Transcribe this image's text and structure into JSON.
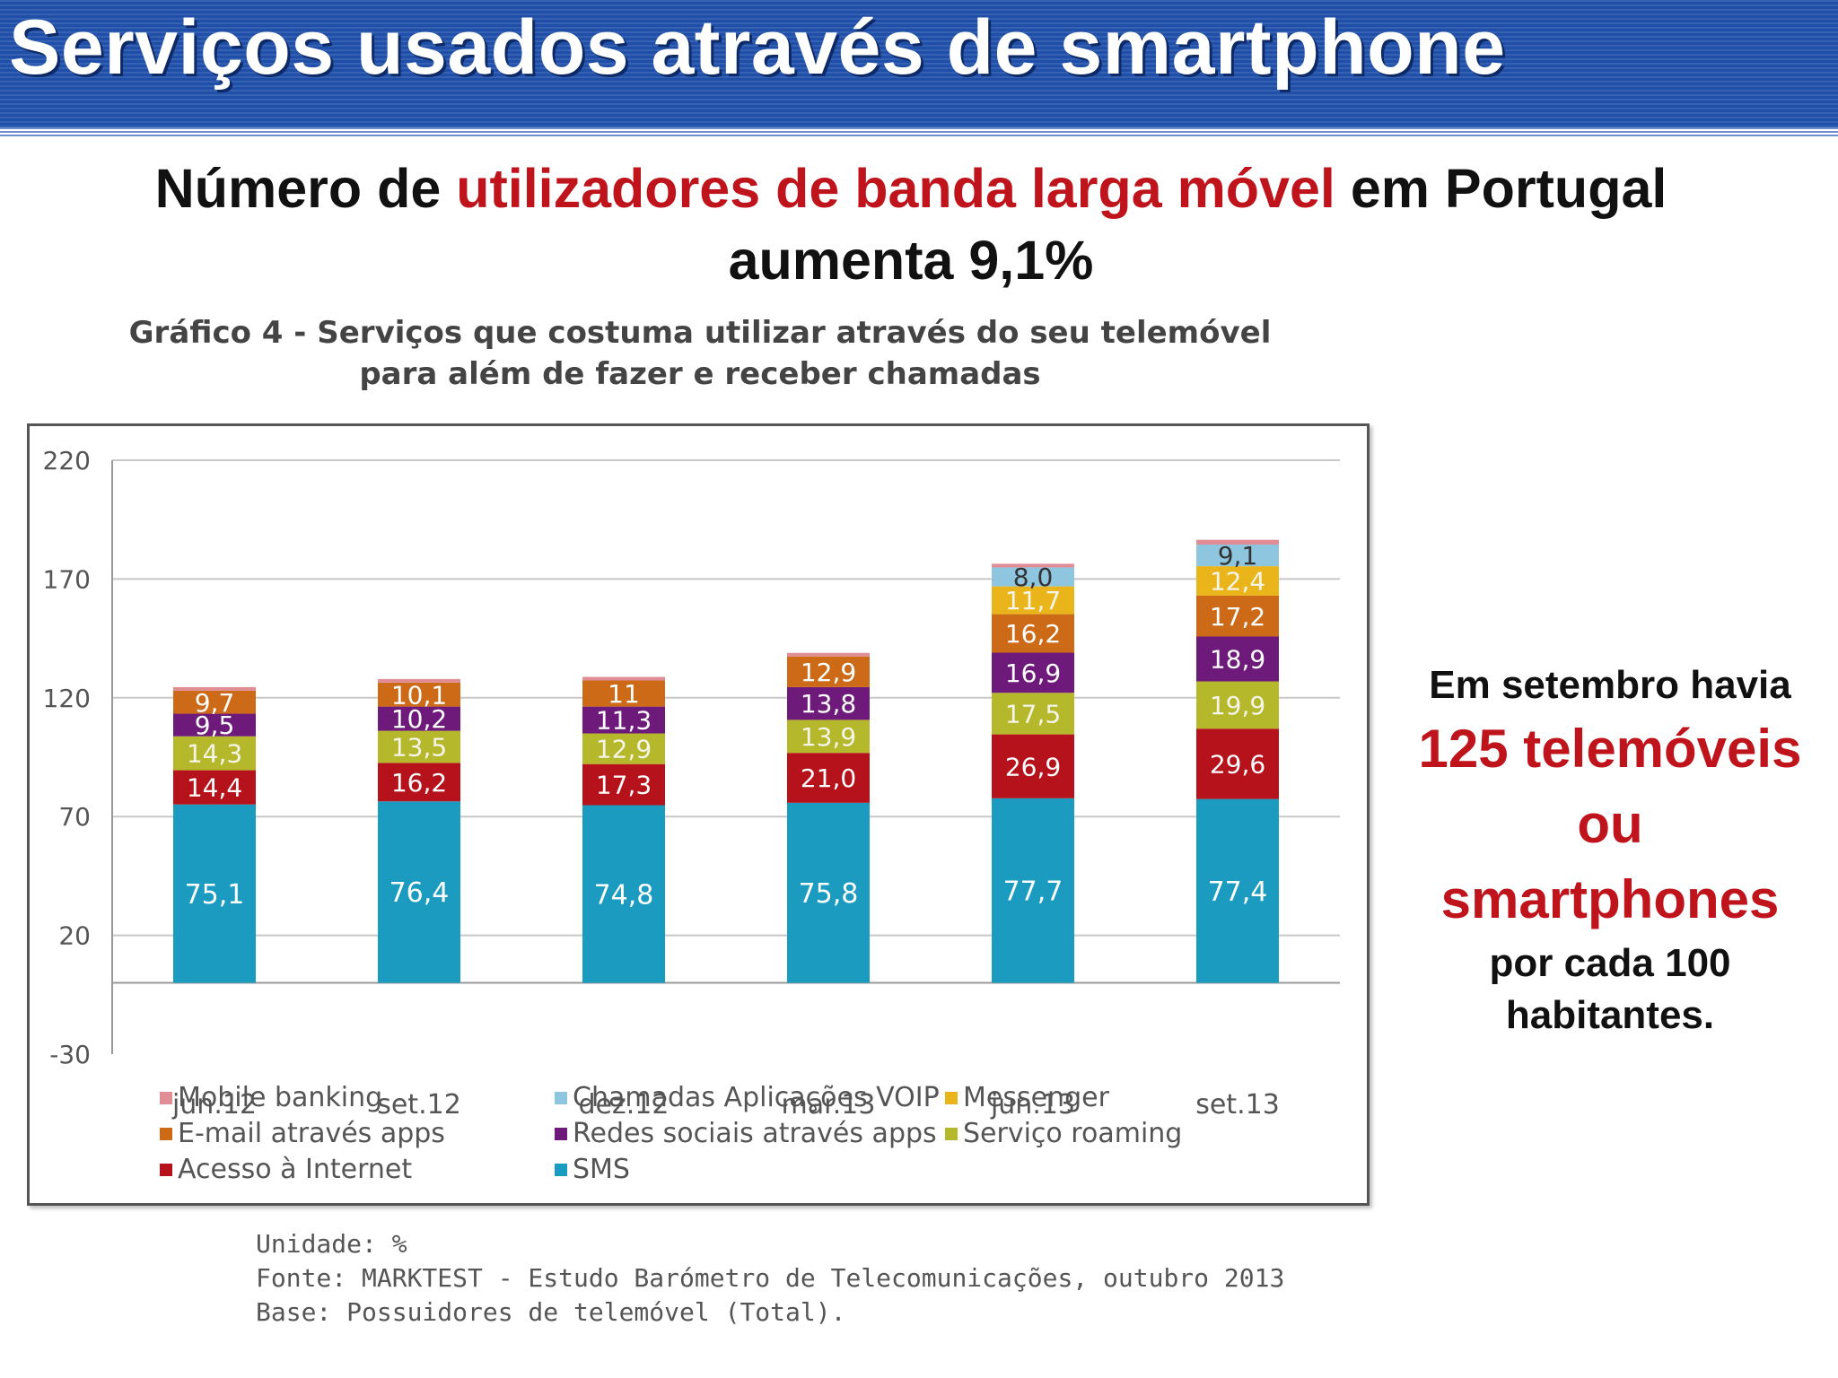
{
  "page": {
    "title": "Serviços usados através de smartphone",
    "headline_parts": [
      "Número de ",
      "utilizadores de banda larga móvel",
      " em Portugal aumenta 9,1%"
    ],
    "colors": {
      "banner": "#1f4fa8",
      "highlight": "#c0141c"
    }
  },
  "side_note": {
    "line1": "Em setembro havia",
    "line2": "125 telemóveis",
    "line3": "ou",
    "line4": "smartphones",
    "line5": "por cada 100",
    "line6": "habitantes."
  },
  "source": {
    "unit": "Unidade: %",
    "source": "Fonte: MARKTEST - Estudo Barómetro de Telecomunicações, outubro 2013",
    "base": "Base: Possuidores de telemóvel (Total)."
  },
  "chart_data": {
    "type": "bar",
    "stacked": true,
    "title_line1": "Gráfico 4 - Serviços que costuma utilizar através do seu telemóvel",
    "title_line2": "para além de fazer e receber chamadas",
    "categories": [
      "jun.12",
      "set.12",
      "dez.12",
      "mar.13",
      "jun.13",
      "set.13"
    ],
    "ylim": [
      -30,
      220
    ],
    "yticks": [
      "220",
      "170",
      "120",
      "70",
      "20",
      "-30"
    ],
    "grid": true,
    "legend_position": "bottom",
    "series": [
      {
        "name": "SMS",
        "color": "#1a9bbf",
        "values": [
          75.1,
          76.4,
          74.8,
          75.8,
          77.7,
          77.4
        ],
        "labels": [
          "75,1",
          "76,4",
          "74,8",
          "75,8",
          "77,7",
          "77,4"
        ]
      },
      {
        "name": "Acesso à Internet",
        "color": "#b5121b",
        "values": [
          14.4,
          16.2,
          17.3,
          21.0,
          26.9,
          29.6
        ],
        "labels": [
          "14,4",
          "16,2",
          "17,3",
          "21,0",
          "26,9",
          "29,6"
        ]
      },
      {
        "name": "Serviço roaming",
        "color": "#b6b82c",
        "values": [
          14.3,
          13.5,
          12.9,
          13.9,
          17.5,
          19.9
        ],
        "labels": [
          "14,3",
          "13,5",
          "12,9",
          "13,9",
          "17,5",
          "19,9"
        ]
      },
      {
        "name": "Redes sociais através apps",
        "color": "#6e1a7a",
        "values": [
          9.5,
          10.2,
          11.3,
          13.8,
          16.9,
          18.9
        ],
        "labels": [
          "9,5",
          "10,2",
          "11,3",
          "13,8",
          "16,9",
          "18,9"
        ]
      },
      {
        "name": "E-mail através apps",
        "color": "#cc6a17",
        "values": [
          9.7,
          10.1,
          11,
          12.9,
          16.2,
          17.2
        ],
        "labels": [
          "9,7",
          "10,1",
          "11",
          "12,9",
          "16,2",
          "17,2"
        ]
      },
      {
        "name": "Messenger",
        "color": "#e9b51a",
        "values": [
          0,
          0,
          0,
          0,
          11.7,
          12.4
        ],
        "labels": [
          "",
          "",
          "",
          "",
          "11,7",
          "12,4"
        ]
      },
      {
        "name": "Chamadas Aplicações VOIP",
        "color": "#8ec6e0",
        "values": [
          0,
          0,
          0,
          0,
          8.0,
          9.1
        ],
        "labels": [
          "",
          "",
          "",
          "",
          "8,0",
          "9,1"
        ]
      },
      {
        "name": "Mobile banking",
        "color": "#e08d95",
        "values": [
          1.5,
          1.5,
          1.5,
          1.5,
          1.5,
          2.0
        ],
        "labels": [
          "",
          "",
          "",
          "",
          "",
          ""
        ]
      }
    ]
  }
}
